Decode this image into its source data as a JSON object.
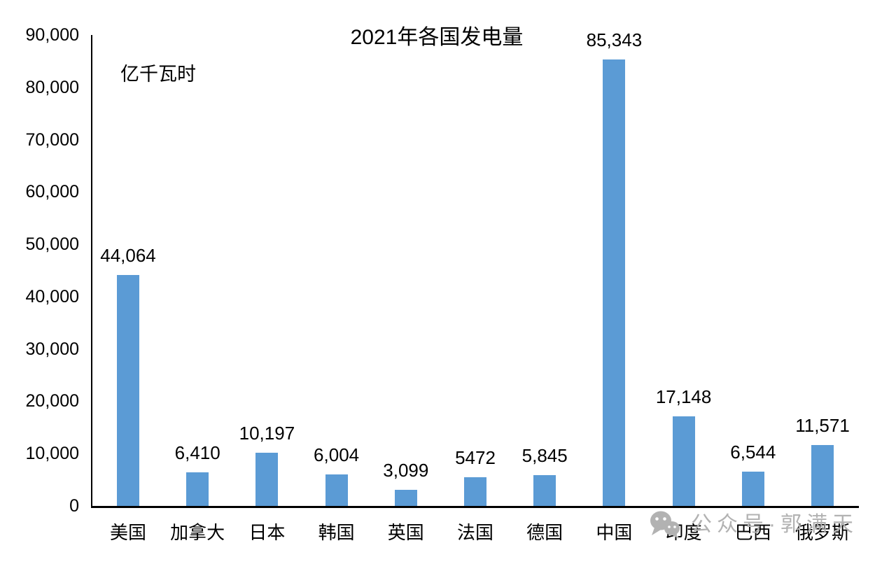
{
  "chart_data": {
    "type": "bar",
    "title": "2021年各国发电量",
    "ylabel": "亿千瓦时",
    "xlabel": "",
    "categories": [
      "美国",
      "加拿大",
      "日本",
      "韩国",
      "英国",
      "法国",
      "德国",
      "中国",
      "印度",
      "巴西",
      "俄罗斯"
    ],
    "values": [
      44064,
      6410,
      10197,
      6004,
      3099,
      5472,
      5845,
      85343,
      17148,
      6544,
      11571
    ],
    "value_labels": [
      "44,064",
      "6,410",
      "10,197",
      "6,004",
      "3,099",
      "5472",
      "5,845",
      "85,343",
      "17,148",
      "6,544",
      "11,571"
    ],
    "ylim": [
      0,
      90000
    ],
    "ytick_interval": 10000,
    "ytick_labels": [
      "0",
      "10,000",
      "20,000",
      "30,000",
      "40,000",
      "50,000",
      "60,000",
      "70,000",
      "80,000",
      "90,000"
    ],
    "grid": false,
    "legend": null,
    "bar_color": "#5B9BD5",
    "axis_color": "#000000",
    "text_color": "#000000"
  },
  "watermark": {
    "icon": "wechat-icon",
    "text": "公众号·郭满天",
    "color": "#b2b2b2"
  }
}
